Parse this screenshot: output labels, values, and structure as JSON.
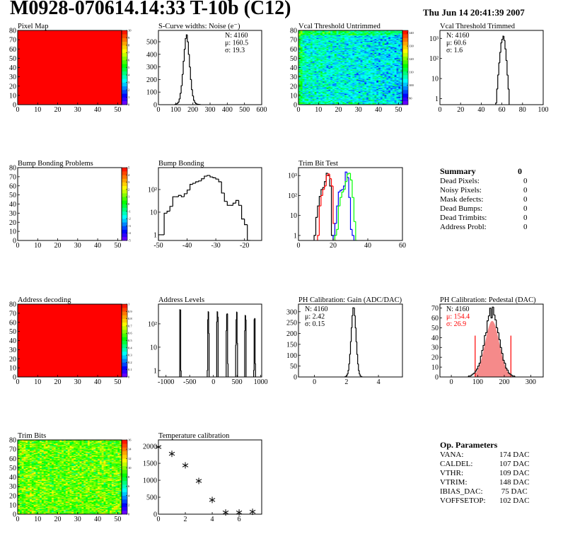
{
  "header": {
    "title": "M0928-070614.14:33 T-10b (C12)",
    "date": "Thu Jun 14 20:41:39 2007"
  },
  "summary": {
    "title": "Summary",
    "total": "0",
    "items": [
      {
        "label": "Dead Pixels:",
        "value": "0"
      },
      {
        "label": "Noisy Pixels:",
        "value": "0"
      },
      {
        "label": "Mask defects:",
        "value": "0"
      },
      {
        "label": "Dead Bumps:",
        "value": "0"
      },
      {
        "label": "Dead Trimbits:",
        "value": "0"
      },
      {
        "label": "Address Probl:",
        "value": "0"
      }
    ]
  },
  "op_parameters": {
    "title": "Op. Parameters",
    "items": [
      {
        "label": "VANA:",
        "value": "174 DAC"
      },
      {
        "label": "CALDEL:",
        "value": "107 DAC"
      },
      {
        "label": "VTHR:",
        "value": "109 DAC"
      },
      {
        "label": "VTRIM:",
        "value": "148 DAC"
      },
      {
        "label": "IBIAS_DAC:",
        "value": " 75 DAC"
      },
      {
        "label": "VOFFSETOP:",
        "value": "102 DAC"
      }
    ]
  },
  "chart_data": [
    {
      "type": "heatmap",
      "title": "Pixel Map",
      "xlim": [
        0,
        52
      ],
      "ylim": [
        0,
        80
      ],
      "xticks": [
        "0",
        "10",
        "20",
        "30",
        "40",
        "50"
      ],
      "yticks": [
        "0",
        "10",
        "20",
        "30",
        "40",
        "50",
        "60",
        "70",
        "80"
      ],
      "zlim": [
        0,
        10
      ],
      "zticks": [
        "0",
        "1",
        "2",
        "3",
        "4",
        "5",
        "6",
        "7",
        "8",
        "9",
        "10"
      ],
      "fill_value": 10
    },
    {
      "type": "bar",
      "title": "S-Curve widths: Noise (e⁻)",
      "xlim": [
        0,
        600
      ],
      "ylim": [
        0,
        590
      ],
      "log_y": false,
      "xticks": [
        "0",
        "100",
        "200",
        "300",
        "400",
        "500",
        "600"
      ],
      "yticks": [
        "0",
        "100",
        "200",
        "300",
        "400",
        "500"
      ],
      "series": [
        {
          "color": "#000000",
          "start": 96,
          "width": 6,
          "values": [
            2,
            5,
            10,
            20,
            45,
            90,
            150,
            240,
            345,
            440,
            525,
            555,
            500,
            400,
            300,
            200,
            120,
            70,
            35,
            18,
            9,
            5,
            3,
            2,
            1
          ]
        }
      ],
      "stats": {
        "position": "top-right",
        "lines": [
          "N: 4160",
          "μ: 160.5",
          "σ: 19.3"
        ]
      }
    },
    {
      "type": "heatmap",
      "title": "Vcal Threshold Untrimmed",
      "xlim": [
        0,
        52
      ],
      "ylim": [
        0,
        80
      ],
      "xticks": [
        "0",
        "10",
        "20",
        "30",
        "40",
        "50"
      ],
      "yticks": [
        "0",
        "10",
        "20",
        "30",
        "40",
        "50",
        "60",
        "70",
        "80"
      ],
      "zlim": [
        85,
        142
      ],
      "zticks": [
        "90",
        "100",
        "110",
        "120",
        "130",
        "140"
      ],
      "value_mean": 106,
      "value_spread": 4
    },
    {
      "type": "bar",
      "title": "Vcal Threshold Trimmed",
      "xlim": [
        0,
        100
      ],
      "ylim": [
        0.5,
        2500
      ],
      "log_y": true,
      "xticks": [
        "0",
        "20",
        "40",
        "60",
        "80",
        "100"
      ],
      "yticks": [
        "1",
        "10",
        "10²",
        "10³"
      ],
      "series": [
        {
          "color": "#000000",
          "start": 54,
          "width": 1,
          "values": [
            0.6,
            3,
            15,
            60,
            200,
            600,
            900,
            1300,
            800,
            300,
            80,
            15,
            3
          ]
        }
      ],
      "stats": {
        "position": "top-left",
        "lines": [
          "N: 4160",
          "μ: 60.6",
          "σ:  1.6"
        ]
      }
    },
    {
      "type": "heatmap",
      "title": "Bump Bonding Problems",
      "xlim": [
        0,
        52
      ],
      "ylim": [
        0,
        80
      ],
      "xticks": [
        "0",
        "10",
        "20",
        "30",
        "40",
        "50"
      ],
      "yticks": [
        "0",
        "10",
        "20",
        "30",
        "40",
        "50",
        "60",
        "70",
        "80"
      ],
      "zlim": [
        -5,
        5
      ],
      "zticks": [
        "-5",
        "-4",
        "-3",
        "-2",
        "-1",
        "0",
        "1",
        "2",
        "3",
        "4",
        "5"
      ],
      "fill_value": null
    },
    {
      "type": "bar",
      "title": "Bump Bonding",
      "xlim": [
        -50,
        -14
      ],
      "ylim": [
        0.56,
        930
      ],
      "log_y": true,
      "xticks": [
        "-50",
        "-40",
        "-30",
        "-20"
      ],
      "yticks": [
        "1",
        "10",
        "10²"
      ],
      "series": [
        {
          "color": "#000000",
          "start": -50,
          "width": 1,
          "values": [
            1,
            1,
            9,
            11,
            18,
            48,
            48,
            55,
            48,
            65,
            95,
            170,
            190,
            220,
            240,
            300,
            390,
            420,
            360,
            330,
            290,
            220,
            70,
            30,
            20,
            20,
            25,
            33,
            20,
            5,
            2.8,
            0
          ]
        }
      ]
    },
    {
      "type": "bar",
      "title": "Trim Bit Test",
      "xlim": [
        0,
        60
      ],
      "ylim": [
        0.56,
        2500
      ],
      "log_y": true,
      "xticks": [
        "0",
        "20",
        "40",
        "60"
      ],
      "yticks": [
        "1",
        "10",
        "10²",
        "10³"
      ],
      "series": [
        {
          "color": "#000000",
          "start": 9,
          "width": 1,
          "values": [
            1,
            8,
            30,
            90,
            200,
            250,
            500,
            1300,
            1000,
            300,
            1
          ]
        },
        {
          "color": "#ff0000",
          "start": 11,
          "width": 1,
          "values": [
            1,
            30,
            100,
            200,
            300,
            1000,
            1200,
            700,
            300,
            4,
            0
          ]
        },
        {
          "color": "#0000ff",
          "start": 20,
          "width": 1,
          "values": [
            1,
            4,
            30,
            150,
            180,
            200,
            300,
            1500,
            800,
            80,
            2,
            1,
            0
          ]
        },
        {
          "color": "#00ff00",
          "start": 21,
          "width": 1,
          "values": [
            1,
            2,
            30,
            80,
            150,
            200,
            500,
            1200,
            1300,
            600,
            80,
            5,
            0
          ]
        }
      ]
    },
    {
      "type": "heatmap",
      "title": "Address decoding",
      "xlim": [
        0,
        52
      ],
      "ylim": [
        0,
        80
      ],
      "xticks": [
        "0",
        "10",
        "20",
        "30",
        "40",
        "50"
      ],
      "yticks": [
        "0",
        "10",
        "20",
        "30",
        "40",
        "50",
        "60",
        "70",
        "80"
      ],
      "zlim": [
        0,
        1
      ],
      "zticks": [
        "0",
        "0.1",
        "0.2",
        "0.3",
        "0.4",
        "0.5",
        "0.6",
        "0.7",
        "0.8",
        "0.9",
        "1"
      ],
      "fill_value": 1
    },
    {
      "type": "bar",
      "title": "Address Levels",
      "xlim": [
        -1160,
        1020
      ],
      "ylim": [
        0.53,
        700
      ],
      "log_y": true,
      "xticks": [
        "-1000",
        "-500",
        "0",
        "500",
        "1000"
      ],
      "yticks": [
        "1",
        "10",
        "10²"
      ],
      "series": [
        {
          "color": "#000000",
          "start": -710,
          "width": 10,
          "values": [
            400,
            400,
            1
          ]
        },
        {
          "color": "#000000",
          "start": -130,
          "width": 10,
          "values": [
            1,
            150,
            330,
            40
          ]
        },
        {
          "color": "#000000",
          "start": 70,
          "width": 10,
          "values": [
            120,
            330,
            200
          ]
        },
        {
          "color": "#000000",
          "start": 270,
          "width": 10,
          "values": [
            50,
            250,
            270,
            2
          ]
        },
        {
          "color": "#000000",
          "start": 470,
          "width": 10,
          "values": [
            12,
            150,
            320,
            15
          ]
        },
        {
          "color": "#000000",
          "start": 660,
          "width": 10,
          "values": [
            50,
            230,
            150
          ]
        },
        {
          "color": "#000000",
          "start": 850,
          "width": 10,
          "values": [
            1,
            150,
            170,
            2
          ]
        }
      ]
    },
    {
      "type": "bar",
      "title": "PH Calibration: Gain (ADC/DAC)",
      "xlim": [
        -1,
        5.5
      ],
      "ylim": [
        0,
        335
      ],
      "log_y": false,
      "xticks": [
        "0",
        "2",
        "4"
      ],
      "yticks": [
        "0",
        "50",
        "100",
        "150",
        "200",
        "250",
        "300"
      ],
      "series": [
        {
          "color": "#000000",
          "start": 1.9,
          "width": 0.05,
          "values": [
            1,
            2,
            6,
            14,
            30,
            60,
            104,
            162,
            226,
            282,
            318,
            318,
            282,
            226,
            162,
            104,
            60,
            30,
            14,
            6,
            2,
            1
          ]
        }
      ],
      "stats": {
        "position": "top-left",
        "lines": [
          "N: 4160",
          "μ: 2.42",
          "σ: 0.15"
        ]
      }
    },
    {
      "type": "bar",
      "title": "PH Calibration: Pedestal (DAC)",
      "xlim": [
        -43,
        347
      ],
      "ylim": [
        0,
        74
      ],
      "log_y": false,
      "xticks": [
        "0",
        "100",
        "200",
        "300"
      ],
      "yticks": [
        "0",
        "10",
        "20",
        "30",
        "40",
        "50",
        "60",
        "70"
      ],
      "series": [
        {
          "color": "#000000",
          "start": 60,
          "width": 5,
          "values": [
            0,
            1,
            1,
            2,
            3,
            4,
            6,
            8,
            11,
            14,
            21,
            27,
            32,
            42,
            45,
            57,
            62,
            70,
            60,
            71,
            63,
            58,
            50,
            45,
            38,
            30,
            24,
            17,
            14,
            9,
            7,
            4,
            3,
            2,
            1,
            1
          ]
        }
      ],
      "fit": {
        "color": "#ff0000",
        "mean": 154.4,
        "sigma": 26.9,
        "amplitude": 57,
        "range": [
          90,
          225
        ],
        "marker_height": 42
      },
      "stats": {
        "position": "top-left",
        "lines": [
          "N: 4160",
          "μ: 154.4",
          "σ: 26.9"
        ],
        "line_colors": [
          "#000000",
          "#ff0000",
          "#ff0000"
        ]
      }
    },
    {
      "type": "heatmap",
      "title": "Trim Bits",
      "xlim": [
        0,
        52
      ],
      "ylim": [
        0,
        80
      ],
      "xticks": [
        "0",
        "10",
        "20",
        "30",
        "40",
        "50"
      ],
      "yticks": [
        "0",
        "10",
        "20",
        "30",
        "40",
        "50",
        "60",
        "70",
        "80"
      ],
      "zlim": [
        0,
        16
      ],
      "zticks": [
        "0",
        "2",
        "4",
        "6",
        "8",
        "10",
        "12",
        "14",
        "16"
      ],
      "value_mean": 9.5,
      "value_spread": 1.3
    },
    {
      "type": "scatter",
      "title": "Temperature calibration",
      "xlim": [
        0,
        7.68
      ],
      "ylim": [
        0,
        2190
      ],
      "xticks": [
        "0",
        "2",
        "4",
        "6"
      ],
      "yticks": [
        "0",
        "500",
        "1000",
        "1500",
        "2000"
      ],
      "x": [
        0,
        1,
        2,
        3,
        4,
        5,
        6,
        7
      ],
      "y": [
        1980,
        1780,
        1440,
        980,
        420,
        50,
        50,
        70
      ],
      "marker": "asterisk"
    }
  ]
}
